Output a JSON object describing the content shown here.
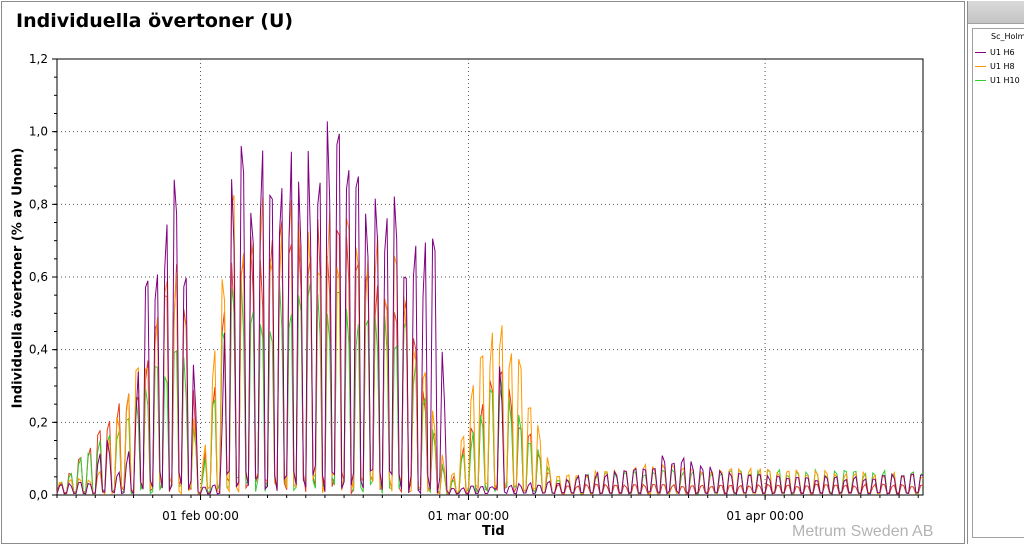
{
  "chart_data": {
    "type": "line",
    "title": "Individuella övertoner (U)",
    "xlabel": "Tid",
    "ylabel": "Individuella övertoner (% av Unom)",
    "xlim": [
      "2013-01-17 00:00",
      "2013-04-17 12:00"
    ],
    "ylim": [
      0,
      1.2
    ],
    "y_ticks": [
      "0,0",
      "0,2",
      "0,4",
      "0,6",
      "0,8",
      "1,0",
      "1,2"
    ],
    "x_ticks": [
      {
        "date": "2013-02-01 00:00",
        "label": "01 feb 00:00"
      },
      {
        "date": "2013-03-01 00:00",
        "label": "01 mar 00:00"
      },
      {
        "date": "2013-04-01 00:00",
        "label": "01 apr 00:00"
      }
    ],
    "grid": true,
    "legend_position": "right",
    "legend_group": "Sc_Holm",
    "series": [
      {
        "name": "U1 H6",
        "color": "#800080",
        "envelope": [
          [
            "2013-01-17 00:00",
            0.03
          ],
          [
            "2013-01-21 00:00",
            0.04
          ],
          [
            "2013-01-22 00:00",
            0.22
          ],
          [
            "2013-01-23 00:00",
            0.05
          ],
          [
            "2013-01-25 00:00",
            0.15
          ],
          [
            "2013-01-26 00:00",
            0.55
          ],
          [
            "2013-01-28 00:00",
            0.85
          ],
          [
            "2013-01-30 00:00",
            0.92
          ],
          [
            "2013-02-01 00:00",
            0.03
          ],
          [
            "2013-02-03 00:00",
            0.03
          ],
          [
            "2013-02-04 00:00",
            0.98
          ],
          [
            "2013-02-08 00:00",
            0.97
          ],
          [
            "2013-02-12 00:00",
            0.97
          ],
          [
            "2013-02-14 00:00",
            1.06
          ],
          [
            "2013-02-18 00:00",
            0.93
          ],
          [
            "2013-02-22 00:00",
            0.85
          ],
          [
            "2013-02-26 00:00",
            0.7
          ],
          [
            "2013-02-27 00:00",
            0.02
          ],
          [
            "2013-03-03 12:00",
            0.03
          ],
          [
            "2013-03-04 00:00",
            0.63
          ],
          [
            "2013-03-05 00:00",
            0.03
          ],
          [
            "2013-03-10 00:00",
            0.04
          ],
          [
            "2013-03-20 00:00",
            0.09
          ],
          [
            "2013-03-22 00:00",
            0.12
          ],
          [
            "2013-03-27 00:00",
            0.07
          ],
          [
            "2013-04-05 00:00",
            0.05
          ],
          [
            "2013-04-17 12:00",
            0.06
          ]
        ]
      },
      {
        "name": "U1 H8",
        "color": "#ff9900",
        "envelope": [
          [
            "2013-01-17 00:00",
            0.04
          ],
          [
            "2013-01-21 00:00",
            0.05
          ],
          [
            "2013-01-26 00:00",
            0.45
          ],
          [
            "2013-01-30 00:00",
            0.75
          ],
          [
            "2013-02-01 00:00",
            0.03
          ],
          [
            "2013-02-04 00:00",
            0.85
          ],
          [
            "2013-02-14 00:00",
            0.8
          ],
          [
            "2013-02-22 00:00",
            0.7
          ],
          [
            "2013-02-27 00:00",
            0.03
          ],
          [
            "2013-03-04 00:00",
            0.58
          ],
          [
            "2013-03-10 00:00",
            0.05
          ],
          [
            "2013-03-20 00:00",
            0.09
          ],
          [
            "2013-03-25 00:00",
            0.08
          ],
          [
            "2013-04-17 12:00",
            0.06
          ]
        ]
      },
      {
        "name": "U1 H10",
        "color": "#33cc33",
        "envelope": [
          [
            "2013-01-17 00:00",
            0.03
          ],
          [
            "2013-01-26 00:00",
            0.3
          ],
          [
            "2013-01-30 00:00",
            0.5
          ],
          [
            "2013-02-01 00:00",
            0.02
          ],
          [
            "2013-02-04 00:00",
            0.6
          ],
          [
            "2013-02-14 00:00",
            0.6
          ],
          [
            "2013-02-22 00:00",
            0.55
          ],
          [
            "2013-02-27 00:00",
            0.02
          ],
          [
            "2013-03-04 00:00",
            0.35
          ],
          [
            "2013-03-10 00:00",
            0.05
          ],
          [
            "2013-03-20 00:00",
            0.07
          ],
          [
            "2013-04-17 12:00",
            0.07
          ]
        ]
      },
      {
        "name": "",
        "color": "#e03c1e",
        "envelope": [
          [
            "2013-01-17 00:00",
            0.02
          ],
          [
            "2013-01-26 00:00",
            0.35
          ],
          [
            "2013-01-30 00:00",
            0.75
          ],
          [
            "2013-02-01 00:00",
            0.02
          ],
          [
            "2013-02-04 00:00",
            0.7
          ],
          [
            "2013-02-14 00:00",
            0.8
          ],
          [
            "2013-02-22 00:00",
            0.6
          ],
          [
            "2013-02-27 00:00",
            0.02
          ],
          [
            "2013-03-04 00:00",
            0.4
          ],
          [
            "2013-03-10 00:00",
            0.03
          ],
          [
            "2013-04-17 12:00",
            0.03
          ]
        ]
      }
    ]
  },
  "watermark": "Metrum Sweden AB"
}
